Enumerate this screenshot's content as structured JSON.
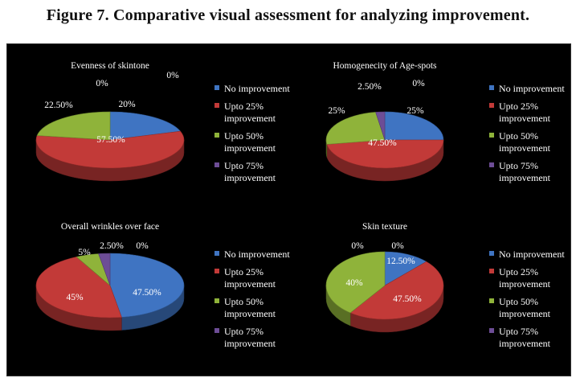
{
  "figure_title": "Figure 7. Comparative visual assessment for analyzing improvement.",
  "colors": {
    "background": "#000000",
    "no_improvement": "#3f74c2",
    "upto25": "#c23a38",
    "upto50": "#8fb33a",
    "upto75": "#6d4d96"
  },
  "chart_data": [
    {
      "type": "pie",
      "title": "Evenness of skintone",
      "categories": [
        "No improvement",
        "Upto 25% improvement",
        "Upto 50% improvement",
        "Upto 75% improvement"
      ],
      "values": [
        20,
        57.5,
        22.5,
        0
      ],
      "labels": [
        "20%",
        "57.50%",
        "22.50%",
        "0%"
      ],
      "extra_labels": [
        "0%"
      ],
      "legend_position": "right"
    },
    {
      "type": "pie",
      "title": "Homogenecity of Age-spots",
      "categories": [
        "No improvement",
        "Upto 25% improvement",
        "Upto 50% improvement",
        "Upto 75% improvement"
      ],
      "values": [
        25,
        47.5,
        25,
        2.5
      ],
      "labels": [
        "25%",
        "47.50%",
        "25%",
        "2.50%"
      ],
      "extra_labels": [
        "0%"
      ],
      "legend_position": "right"
    },
    {
      "type": "pie",
      "title": "Overall wrinkles over face",
      "categories": [
        "No improvement",
        "Upto 25% improvement",
        "Upto 50% improvement",
        "Upto 75% improvement"
      ],
      "values": [
        47.5,
        45,
        5,
        2.5
      ],
      "labels": [
        "47.50%",
        "45%",
        "5%",
        "2.50%"
      ],
      "extra_labels": [
        "0%"
      ],
      "legend_position": "right"
    },
    {
      "type": "pie",
      "title": "Skin texture",
      "categories": [
        "No improvement",
        "Upto 25% improvement",
        "Upto 50% improvement",
        "Upto 75% improvement"
      ],
      "values": [
        12.5,
        47.5,
        40,
        0
      ],
      "labels": [
        "12.50%",
        "47.50%",
        "40%",
        "0%"
      ],
      "extra_labels": [
        "0%"
      ],
      "legend_position": "right"
    }
  ],
  "legend": {
    "items": [
      {
        "line1": "No improvement",
        "line2": ""
      },
      {
        "line1": "Upto 25%",
        "line2": "improvement"
      },
      {
        "line1": "Upto 50%",
        "line2": "improvement"
      },
      {
        "line1": "Upto 75%",
        "line2": "improvement"
      }
    ]
  }
}
